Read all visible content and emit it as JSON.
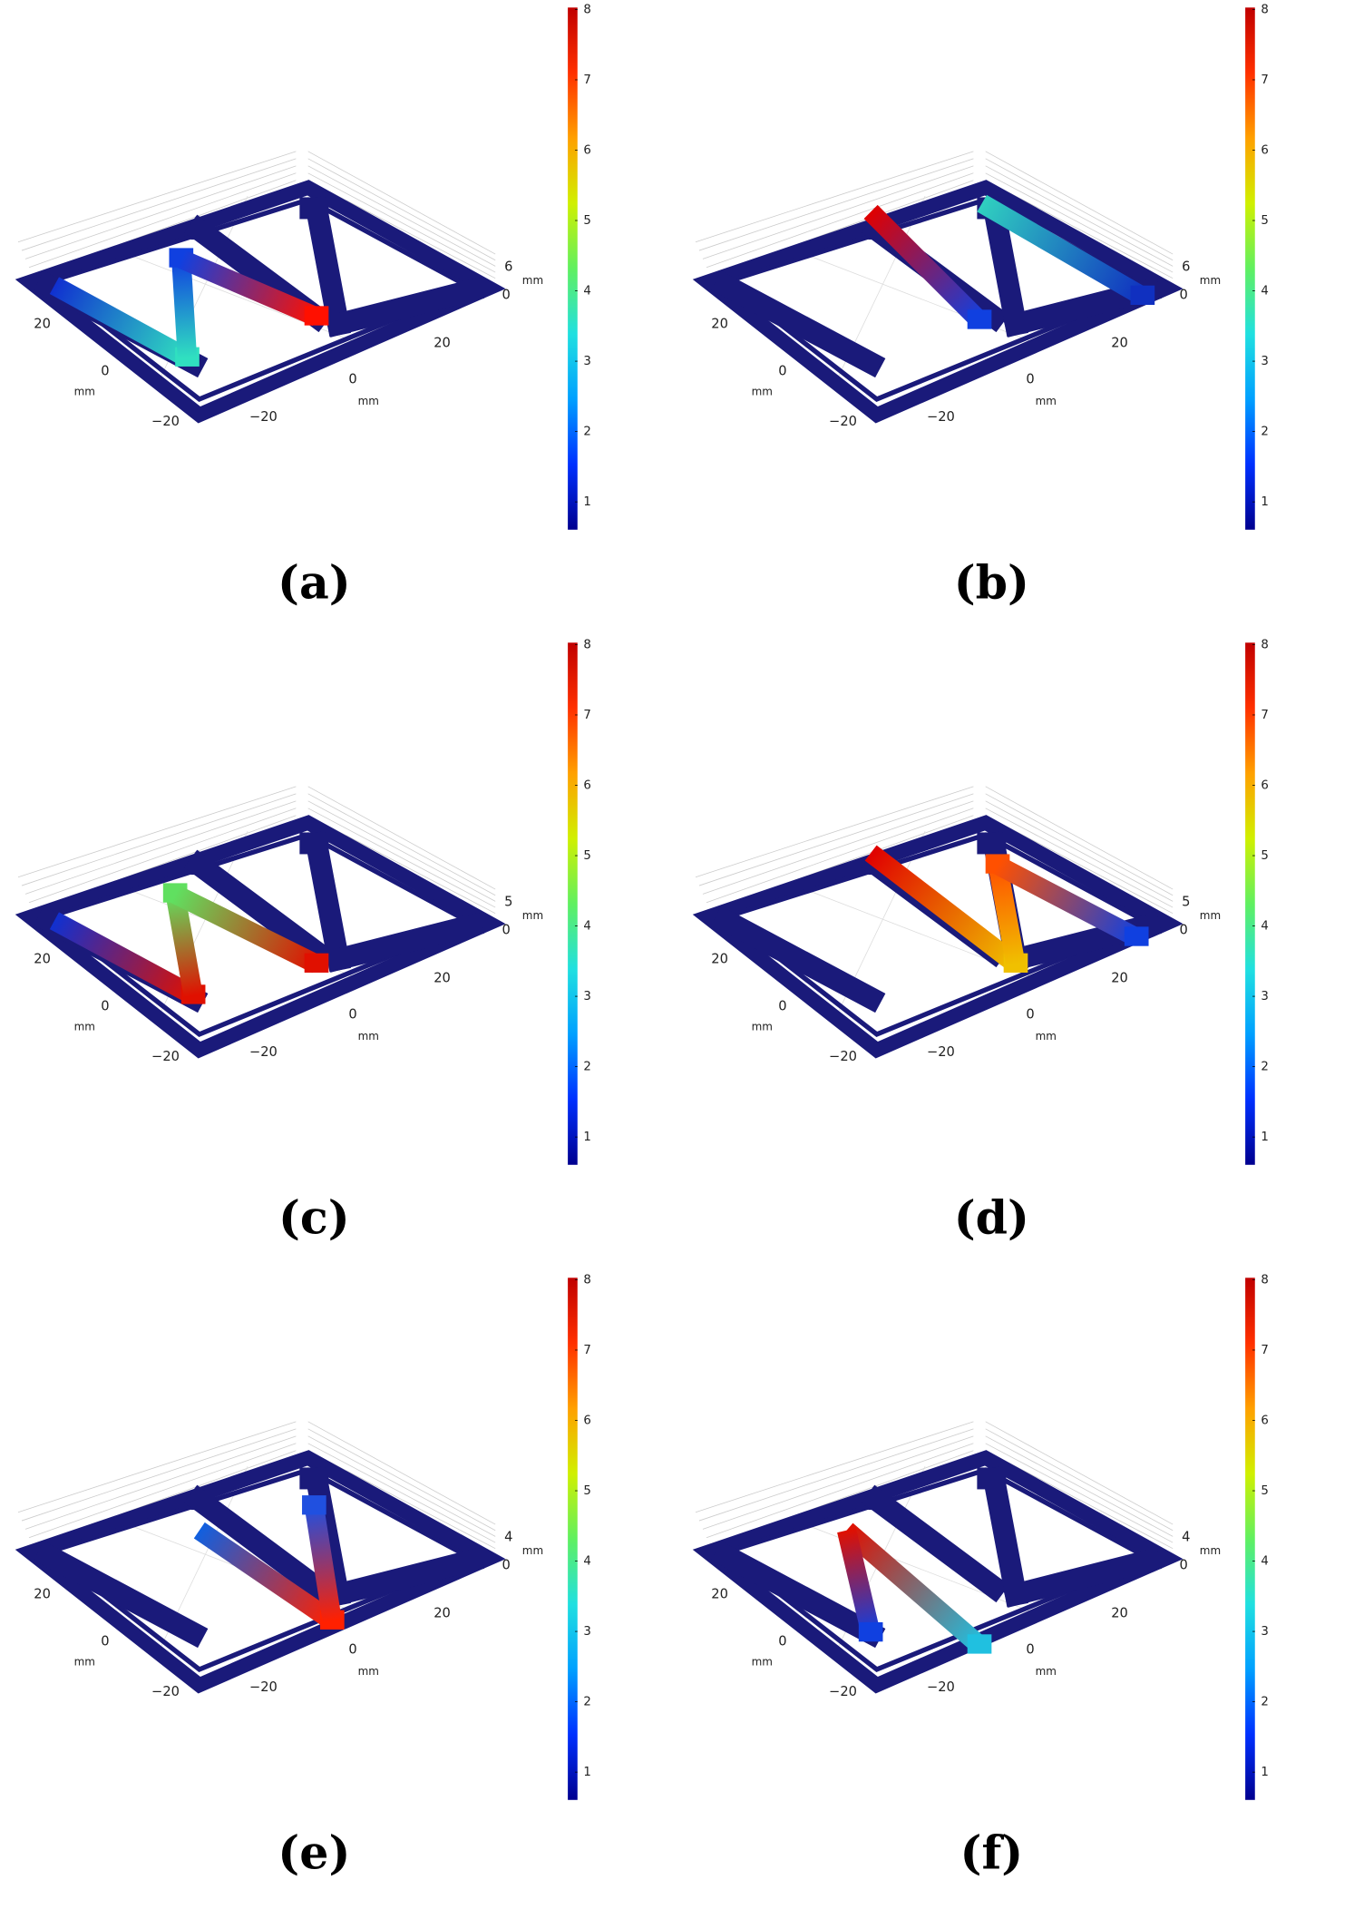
{
  "panels": [
    {
      "label": "(a)",
      "z_ticks": [
        "6",
        "0"
      ]
    },
    {
      "label": "(b)",
      "z_ticks": [
        "6",
        "0"
      ]
    },
    {
      "label": "(c)",
      "z_ticks": [
        "5",
        "0"
      ]
    },
    {
      "label": "(d)",
      "z_ticks": [
        "5",
        "0"
      ]
    },
    {
      "label": "(e)",
      "z_ticks": [
        "4",
        "0"
      ]
    },
    {
      "label": "(f)",
      "z_ticks": [
        "4",
        "0"
      ]
    }
  ],
  "colorbar_ticks": [
    1,
    2,
    3,
    4,
    5,
    6,
    7,
    8
  ],
  "left_axis_ticks": [
    "20",
    "0",
    "−20"
  ],
  "front_axis_ticks": [
    "−20",
    "0",
    "20"
  ],
  "unit": "mm"
}
